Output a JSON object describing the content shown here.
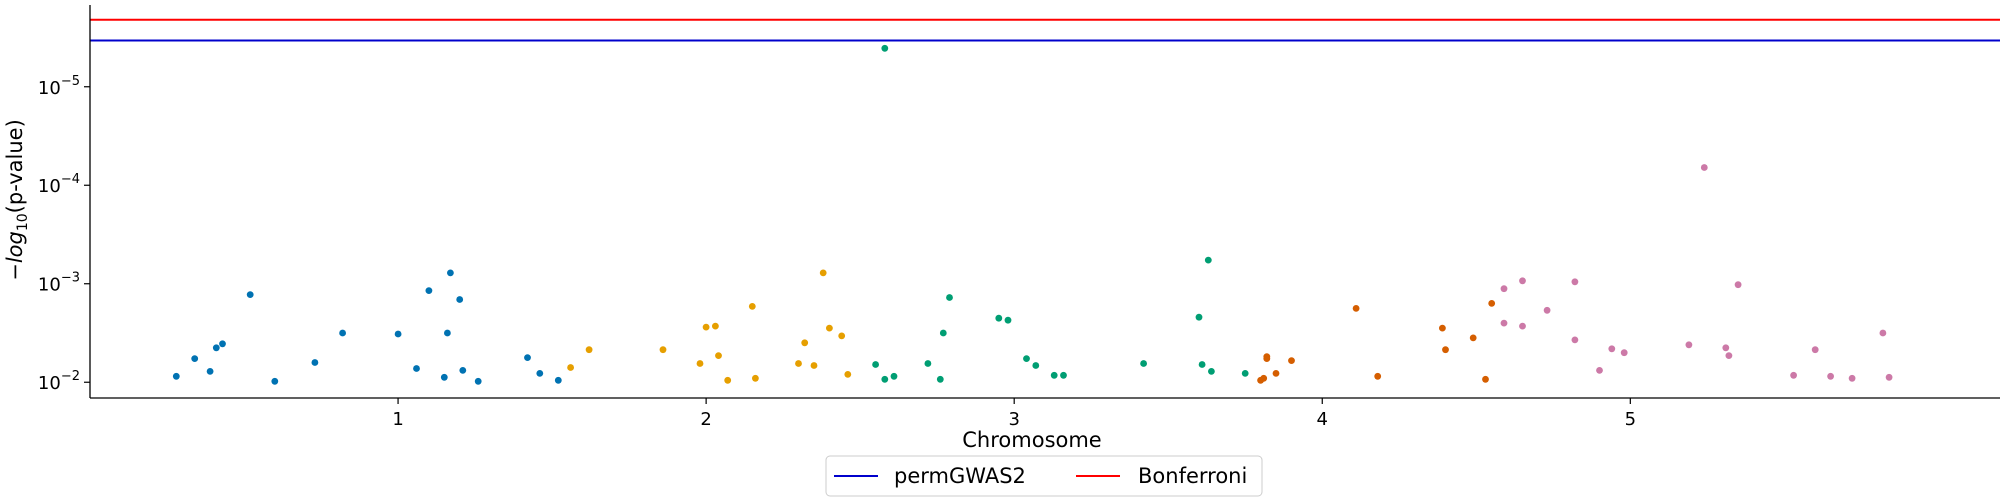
{
  "chart_data": {
    "type": "scatter",
    "title": "",
    "xlabel": "Chromosome",
    "ylabel": {
      "prefix": "−",
      "log": "log",
      "base": "10",
      "suffix": "(p-value)"
    },
    "x_ticks": [
      {
        "label": "1",
        "value": 1.0
      },
      {
        "label": "2",
        "value": 2.0
      },
      {
        "label": "3",
        "value": 3.0
      },
      {
        "label": "4",
        "value": 4.0
      },
      {
        "label": "5",
        "value": 5.0
      }
    ],
    "y_ticks": [
      {
        "base": "10",
        "exp": "−5",
        "value": 5
      },
      {
        "base": "10",
        "exp": "−4",
        "value": 4
      },
      {
        "base": "10",
        "exp": "−3",
        "value": 3
      },
      {
        "base": "10",
        "exp": "−2",
        "value": 2
      }
    ],
    "xlim": [
      0.0,
      6.2
    ],
    "ylim_neglog10": [
      1.84,
      5.83
    ],
    "legend": {
      "placement": "below-center",
      "entries": [
        {
          "name": "permGWAS2",
          "color": "#0000cc"
        },
        {
          "name": "Bonferroni",
          "color": "#ff0000"
        }
      ]
    },
    "thresholds": [
      {
        "name": "permGWAS2",
        "neglog10_p": 5.47,
        "color": "#0000cc"
      },
      {
        "name": "Bonferroni",
        "neglog10_p": 5.68,
        "color": "#ff0000"
      }
    ],
    "series": [
      {
        "color": "#0072b2",
        "points": [
          [
            0.28,
            2.06
          ],
          [
            0.34,
            2.24
          ],
          [
            0.39,
            2.11
          ],
          [
            0.41,
            2.35
          ],
          [
            0.43,
            2.39
          ],
          [
            0.52,
            2.89
          ],
          [
            0.6,
            2.01
          ],
          [
            0.73,
            2.2
          ],
          [
            0.82,
            2.5
          ],
          [
            1.0,
            2.49
          ],
          [
            1.06,
            2.14
          ],
          [
            1.1,
            2.93
          ],
          [
            1.15,
            2.05
          ],
          [
            1.16,
            2.5
          ],
          [
            1.17,
            3.11
          ],
          [
            1.2,
            2.84
          ],
          [
            1.21,
            2.12
          ],
          [
            1.26,
            2.01
          ],
          [
            1.42,
            2.25
          ],
          [
            1.46,
            2.09
          ],
          [
            1.52,
            2.02
          ]
        ]
      },
      {
        "color": "#e69f00",
        "points": [
          [
            1.56,
            2.15
          ],
          [
            1.62,
            2.33
          ],
          [
            1.86,
            2.33
          ],
          [
            1.98,
            2.19
          ],
          [
            2.0,
            2.56
          ],
          [
            2.03,
            2.57
          ],
          [
            2.04,
            2.27
          ],
          [
            2.07,
            2.02
          ],
          [
            2.15,
            2.77
          ],
          [
            2.16,
            2.04
          ],
          [
            2.3,
            2.19
          ],
          [
            2.32,
            2.4
          ],
          [
            2.35,
            2.17
          ],
          [
            2.38,
            3.11
          ],
          [
            2.4,
            2.55
          ],
          [
            2.44,
            2.47
          ],
          [
            2.46,
            2.08
          ]
        ]
      },
      {
        "color": "#009e73",
        "points": [
          [
            2.55,
            2.18
          ],
          [
            2.58,
            5.39
          ],
          [
            2.58,
            2.03
          ],
          [
            2.61,
            2.06
          ],
          [
            2.72,
            2.19
          ],
          [
            2.76,
            2.03
          ],
          [
            2.77,
            2.5
          ],
          [
            2.79,
            2.86
          ],
          [
            2.95,
            2.65
          ],
          [
            2.98,
            2.63
          ],
          [
            3.04,
            2.24
          ],
          [
            3.07,
            2.17
          ],
          [
            3.13,
            2.07
          ],
          [
            3.16,
            2.07
          ],
          [
            3.42,
            2.19
          ],
          [
            3.6,
            2.66
          ],
          [
            3.61,
            2.18
          ],
          [
            3.63,
            3.24
          ],
          [
            3.64,
            2.11
          ],
          [
            3.75,
            2.09
          ]
        ]
      },
      {
        "color": "#d55e00",
        "points": [
          [
            3.8,
            2.02
          ],
          [
            3.81,
            2.04
          ],
          [
            3.82,
            2.26
          ],
          [
            3.82,
            2.24
          ],
          [
            3.85,
            2.09
          ],
          [
            3.9,
            2.22
          ],
          [
            4.11,
            2.75
          ],
          [
            4.18,
            2.06
          ],
          [
            4.39,
            2.55
          ],
          [
            4.4,
            2.33
          ],
          [
            4.49,
            2.45
          ],
          [
            4.53,
            2.03
          ],
          [
            4.55,
            2.8
          ]
        ]
      },
      {
        "color": "#cc79a7",
        "points": [
          [
            4.59,
            2.6
          ],
          [
            4.59,
            2.95
          ],
          [
            4.65,
            3.03
          ],
          [
            4.65,
            2.57
          ],
          [
            4.73,
            2.73
          ],
          [
            4.82,
            2.43
          ],
          [
            4.82,
            3.02
          ],
          [
            4.9,
            2.12
          ],
          [
            4.94,
            2.34
          ],
          [
            4.98,
            2.3
          ],
          [
            5.19,
            2.38
          ],
          [
            5.24,
            4.18
          ],
          [
            5.31,
            2.35
          ],
          [
            5.32,
            2.27
          ],
          [
            5.35,
            2.99
          ],
          [
            5.53,
            2.07
          ],
          [
            5.6,
            2.33
          ],
          [
            5.65,
            2.06
          ],
          [
            5.72,
            2.04
          ],
          [
            5.82,
            2.5
          ],
          [
            5.84,
            2.05
          ]
        ]
      }
    ]
  }
}
